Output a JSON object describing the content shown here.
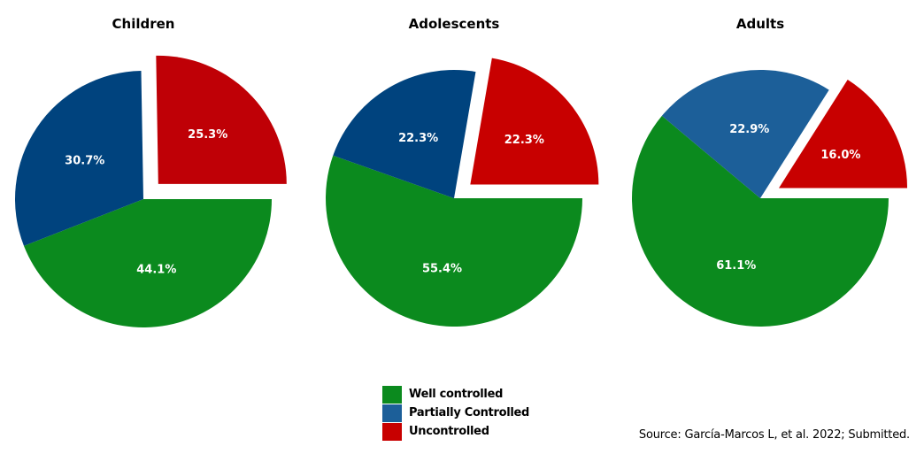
{
  "chart_data": [
    {
      "type": "pie",
      "title": "Children",
      "categories": [
        "Well controlled",
        "Partially Controlled",
        "Uncontrolled"
      ],
      "values": [
        44.1,
        30.7,
        25.3
      ],
      "labels": [
        "44.1%",
        "30.7%",
        "25.3%"
      ],
      "colors": [
        "#0b8a1e",
        "#00437e",
        "#bf0006"
      ],
      "exploded": "Uncontrolled"
    },
    {
      "type": "pie",
      "title": "Adolescents",
      "categories": [
        "Well controlled",
        "Partially Controlled",
        "Uncontrolled"
      ],
      "values": [
        55.4,
        22.3,
        22.3
      ],
      "labels": [
        "55.4%",
        "22.3%",
        "22.3%"
      ],
      "colors": [
        "#0b8a1e",
        "#00437e",
        "#c80000"
      ],
      "exploded": "Uncontrolled"
    },
    {
      "type": "pie",
      "title": "Adults",
      "categories": [
        "Well controlled",
        "Partially Controlled",
        "Uncontrolled"
      ],
      "values": [
        61.1,
        22.9,
        16.0
      ],
      "labels": [
        "61.1%",
        "22.9%",
        "16.0%"
      ],
      "colors": [
        "#0b8a1e",
        "#1c5f99",
        "#c80000"
      ],
      "exploded": "Uncontrolled"
    }
  ],
  "legend": {
    "placement": "bottom-center",
    "items": [
      {
        "label": "Well controlled",
        "color": "#0b8a1e"
      },
      {
        "label": "Partially Controlled",
        "color": "#1c5f99"
      },
      {
        "label": "Uncontrolled",
        "color": "#c80000"
      }
    ]
  },
  "source": "Source: García-Marcos L, et al. 2022; Submitted."
}
